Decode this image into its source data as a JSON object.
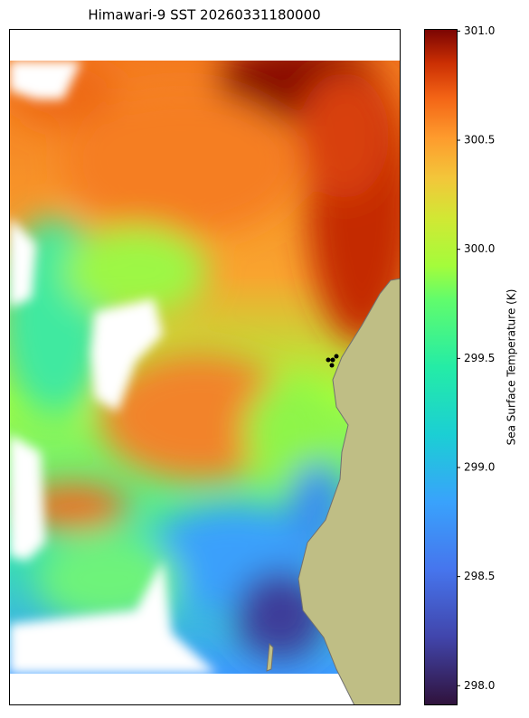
{
  "chart_data": {
    "type": "map",
    "title": "Himawari-9 SST 20260331180000",
    "colorbar_label": "Sea Surface Temperature (K)",
    "colorbar_lim": [
      297.91,
      301.01
    ],
    "colorbar_ticks": [
      {
        "value": 298.0,
        "label": "298.0"
      },
      298.5,
      {
        "value": 299.0,
        "label": "299.0"
      },
      299.5,
      {
        "value": 300.0,
        "label": "300.0"
      },
      300.5,
      {
        "value": 301.0,
        "label": "301.0"
      }
    ]
  }
}
